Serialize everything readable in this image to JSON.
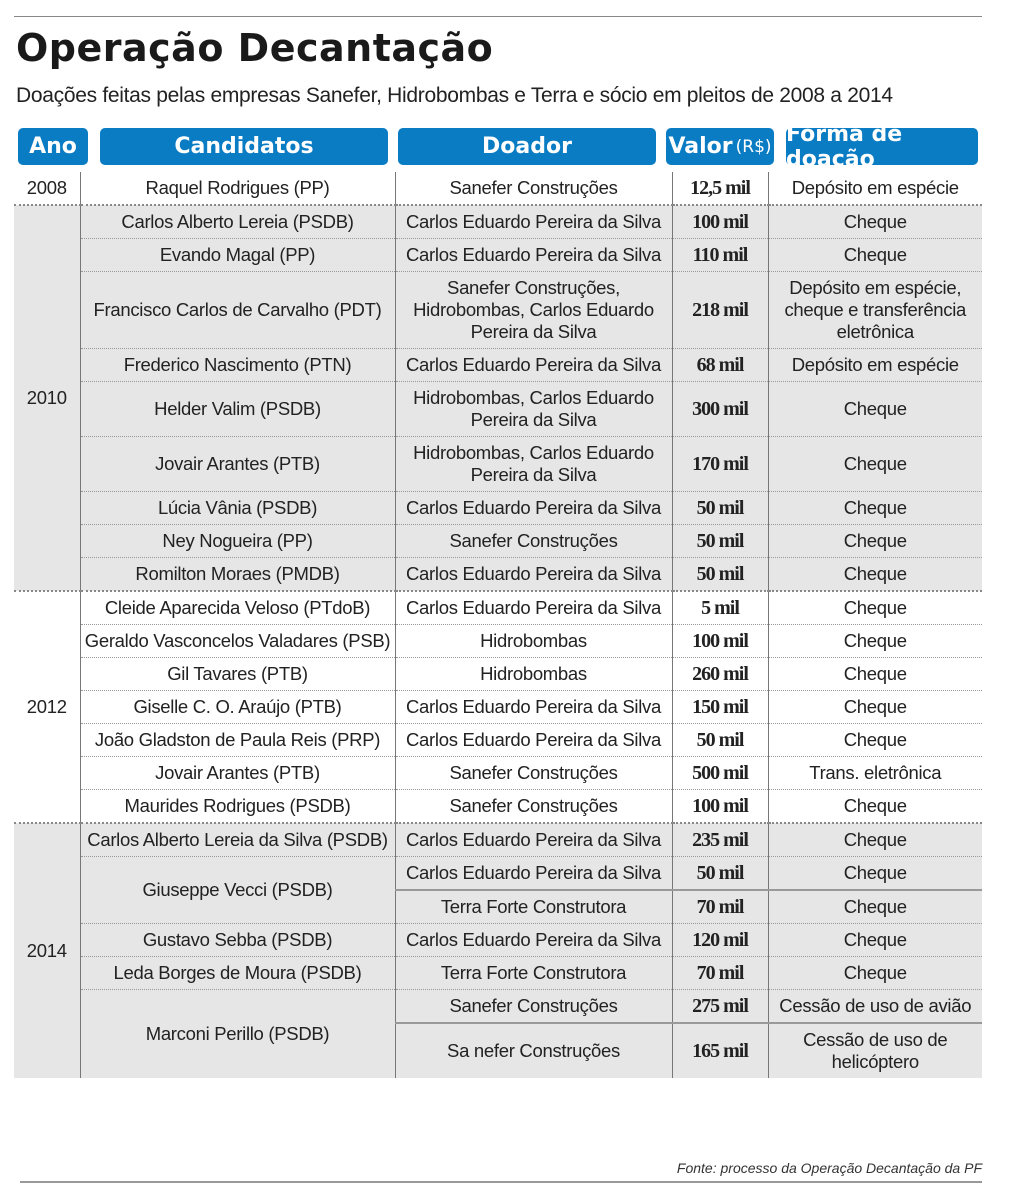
{
  "title": "Operação Decantação",
  "subtitle": "Doações feitas pelas empresas  Sanefer, Hidrobombas e Terra e sócio em pleitos de 2008 a 2014",
  "headers": {
    "ano": "Ano",
    "candidatos": "Candidatos",
    "doador": "Doador",
    "valor": "Valor",
    "valor_unit": "(R$)",
    "forma": "Forma de doação"
  },
  "colors": {
    "header_bg": "#0a7cc4",
    "shade": "#e6e6e6"
  },
  "years": [
    {
      "year": "2008",
      "candidates": [
        {
          "name": "Raquel  Rodrigues (PP)",
          "donations": [
            {
              "donor": "Sanefer Construções",
              "value": "12,5 mil",
              "form": "Depósito em espécie"
            }
          ]
        }
      ]
    },
    {
      "year": "2010",
      "candidates": [
        {
          "name": "Carlos Alberto Lereia (PSDB)",
          "donations": [
            {
              "donor": "Carlos Eduardo Pereira da Silva",
              "value": "100 mil",
              "form": "Cheque"
            }
          ]
        },
        {
          "name": "Evando Magal (PP)",
          "donations": [
            {
              "donor": "Carlos Eduardo Pereira da Silva",
              "value": "110 mil",
              "form": "Cheque"
            }
          ]
        },
        {
          "name": "Francisco Carlos de Carvalho (PDT)",
          "donations": [
            {
              "donor": "Sanefer Construções, Hidrobombas, Carlos Eduardo Pereira da Silva",
              "value": "218 mil",
              "form": "Depósito em espécie, cheque e transferência eletrônica"
            }
          ]
        },
        {
          "name": "Frederico Nascimento  (PTN)",
          "donations": [
            {
              "donor": "Carlos Eduardo Pereira da Silva",
              "value": "68 mil",
              "form": "Depósito em espécie"
            }
          ]
        },
        {
          "name": "Helder Valim (PSDB)",
          "donations": [
            {
              "donor": "Hidrobombas, Carlos Eduardo Pereira da Silva",
              "value": "300 mil",
              "form": "Cheque"
            }
          ]
        },
        {
          "name": "Jovair Arantes (PTB)",
          "donations": [
            {
              "donor": "Hidrobombas, Carlos Eduardo Pereira da Silva",
              "value": "170 mil",
              "form": "Cheque"
            }
          ]
        },
        {
          "name": "Lúcia Vânia (PSDB)",
          "donations": [
            {
              "donor": "Carlos Eduardo Pereira da Silva",
              "value": "50 mil",
              "form": "Cheque"
            }
          ]
        },
        {
          "name": "Ney Nogueira (PP)",
          "donations": [
            {
              "donor": "Sanefer Construções",
              "value": "50 mil",
              "form": "Cheque"
            }
          ]
        },
        {
          "name": "Romilton Moraes (PMDB)",
          "donations": [
            {
              "donor": "Carlos Eduardo Pereira da Silva",
              "value": "50 mil",
              "form": "Cheque"
            }
          ]
        }
      ]
    },
    {
      "year": "2012",
      "candidates": [
        {
          "name": "Cleide Aparecida Veloso (PTdoB)",
          "donations": [
            {
              "donor": "Carlos Eduardo Pereira da Silva",
              "value": "5 mil",
              "form": "Cheque"
            }
          ]
        },
        {
          "name": "Geraldo Vasconcelos Valadares (PSB)",
          "donations": [
            {
              "donor": "Hidrobombas",
              "value": "100 mil",
              "form": "Cheque"
            }
          ]
        },
        {
          "name": "Gil Tavares (PTB)",
          "donations": [
            {
              "donor": "Hidrobombas",
              "value": "260 mil",
              "form": "Cheque"
            }
          ]
        },
        {
          "name": "Giselle C. O. Araújo (PTB)",
          "donations": [
            {
              "donor": "Carlos Eduardo Pereira da Silva",
              "value": "150 mil",
              "form": "Cheque"
            }
          ]
        },
        {
          "name": "João Gladston de Paula Reis (PRP)",
          "donations": [
            {
              "donor": "Carlos Eduardo Pereira da Silva",
              "value": "50 mil",
              "form": "Cheque"
            }
          ]
        },
        {
          "name": "Jovair Arantes (PTB)",
          "donations": [
            {
              "donor": "Sanefer Construções",
              "value": "500 mil",
              "form": "Trans. eletrônica"
            }
          ]
        },
        {
          "name": "Maurides Rodrigues (PSDB)",
          "donations": [
            {
              "donor": "Sanefer Construções",
              "value": "100 mil",
              "form": "Cheque"
            }
          ]
        }
      ]
    },
    {
      "year": "2014",
      "candidates": [
        {
          "name": "Carlos Alberto Lereia da Silva (PSDB)",
          "donations": [
            {
              "donor": "Carlos Eduardo Pereira da Silva",
              "value": "235 mil",
              "form": "Cheque"
            }
          ]
        },
        {
          "name": "Giuseppe Vecci (PSDB)",
          "donations": [
            {
              "donor": "Carlos Eduardo Pereira da Silva",
              "value": "50 mil",
              "form": "Cheque"
            },
            {
              "donor": "Terra Forte Construtora",
              "value": "70 mil",
              "form": "Cheque"
            }
          ]
        },
        {
          "name": "Gustavo Sebba (PSDB)",
          "donations": [
            {
              "donor": "Carlos Eduardo Pereira da Silva",
              "value": "120 mil",
              "form": "Cheque"
            }
          ]
        },
        {
          "name": "Leda Borges de Moura (PSDB)",
          "donations": [
            {
              "donor": "Terra Forte Construtora",
              "value": "70 mil",
              "form": "Cheque"
            }
          ]
        },
        {
          "name": "Marconi Perillo (PSDB)",
          "donations": [
            {
              "donor": "Sanefer Construções",
              "value": "275 mil",
              "form": "Cessão de uso de avião"
            },
            {
              "donor": "Sa nefer Construções",
              "value": "165 mil",
              "form": "Cessão de uso de helicóptero"
            }
          ]
        }
      ]
    }
  ],
  "source": "Fonte: processo da Operação Decantação da PF"
}
